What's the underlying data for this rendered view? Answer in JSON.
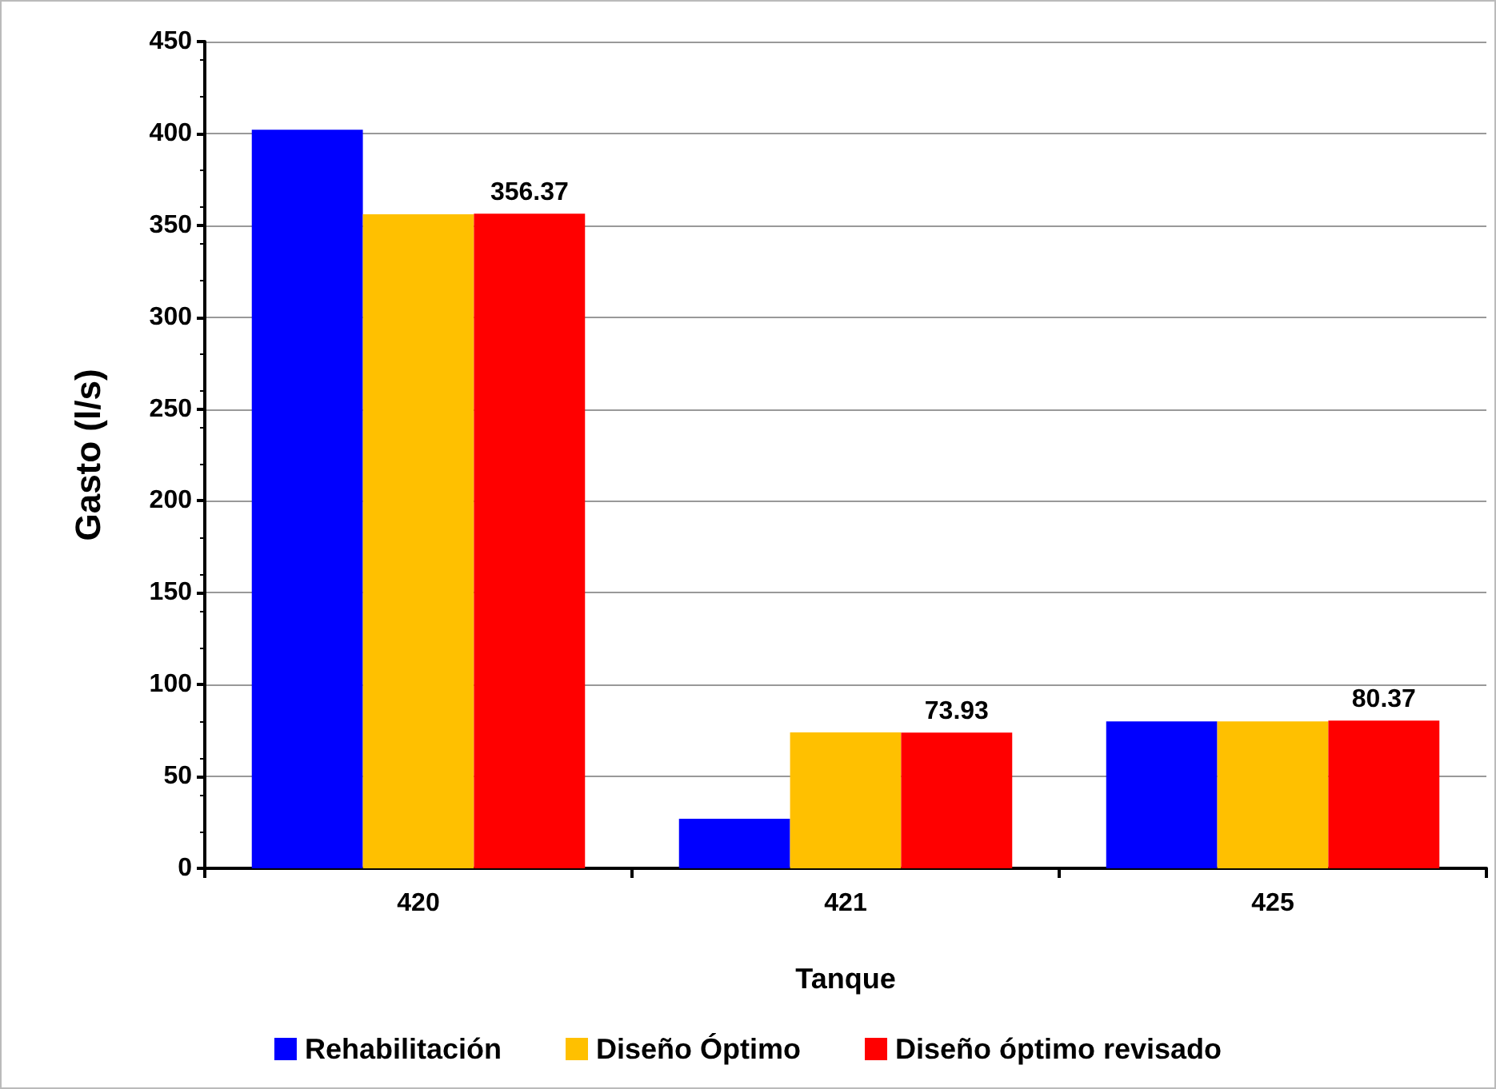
{
  "chart_data": {
    "type": "bar",
    "xlabel": "Tanque",
    "ylabel": "Gasto (l/s)",
    "categories": [
      "420",
      "421",
      "425"
    ],
    "series": [
      {
        "name": "Rehabilitación",
        "color": "#0000ff",
        "values": [
          402,
          27,
          80
        ]
      },
      {
        "name": "Diseño Óptimo",
        "color": "#ffc000",
        "values": [
          356,
          74,
          80
        ]
      },
      {
        "name": "Diseño óptimo revisado",
        "color": "#ff0000",
        "values": [
          356.37,
          73.93,
          80.37
        ],
        "value_labels": [
          "356.37",
          "73.93",
          "80.37"
        ]
      }
    ],
    "ylim": [
      0,
      450
    ],
    "yticks": [
      0,
      50,
      100,
      150,
      200,
      250,
      300,
      350,
      400,
      450
    ],
    "grid": "y",
    "legend": "bottom"
  }
}
